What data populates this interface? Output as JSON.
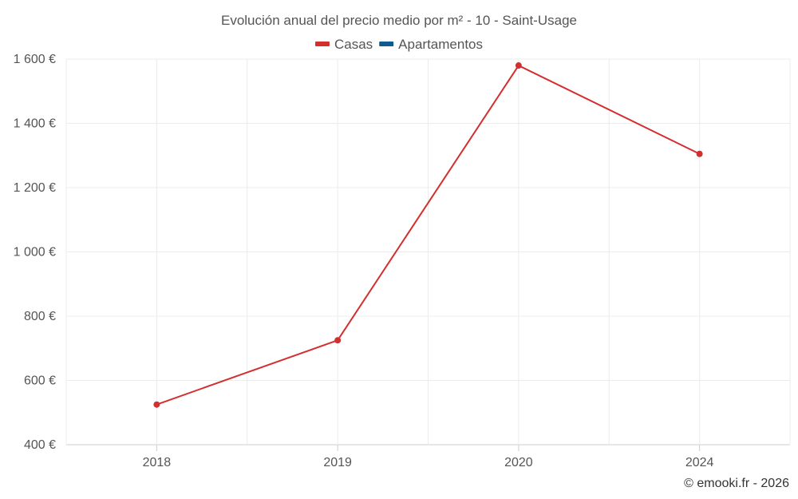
{
  "chart_data": {
    "type": "line",
    "title": "Evolución anual del precio medio por m² - 10 - Saint-Usage",
    "categories": [
      "2018",
      "2019",
      "2020",
      "2024"
    ],
    "series": [
      {
        "name": "Casas",
        "color": "#d32f2f",
        "values": [
          525,
          725,
          1580,
          1305
        ]
      },
      {
        "name": "Apartamentos",
        "color": "#0d5c91",
        "values": [
          null,
          null,
          null,
          null
        ]
      }
    ],
    "y_ticks": [
      400,
      600,
      800,
      1000,
      1200,
      1400,
      1600
    ],
    "y_tick_labels": [
      "400 €",
      "600 €",
      "800 €",
      "1 000 €",
      "1 200 €",
      "1 400 €",
      "1 600 €"
    ],
    "ylim": [
      400,
      1600
    ],
    "xlabel": "",
    "ylabel": "",
    "legend_position": "top-center",
    "grid": true
  },
  "credit": "© emooki.fr - 2026"
}
